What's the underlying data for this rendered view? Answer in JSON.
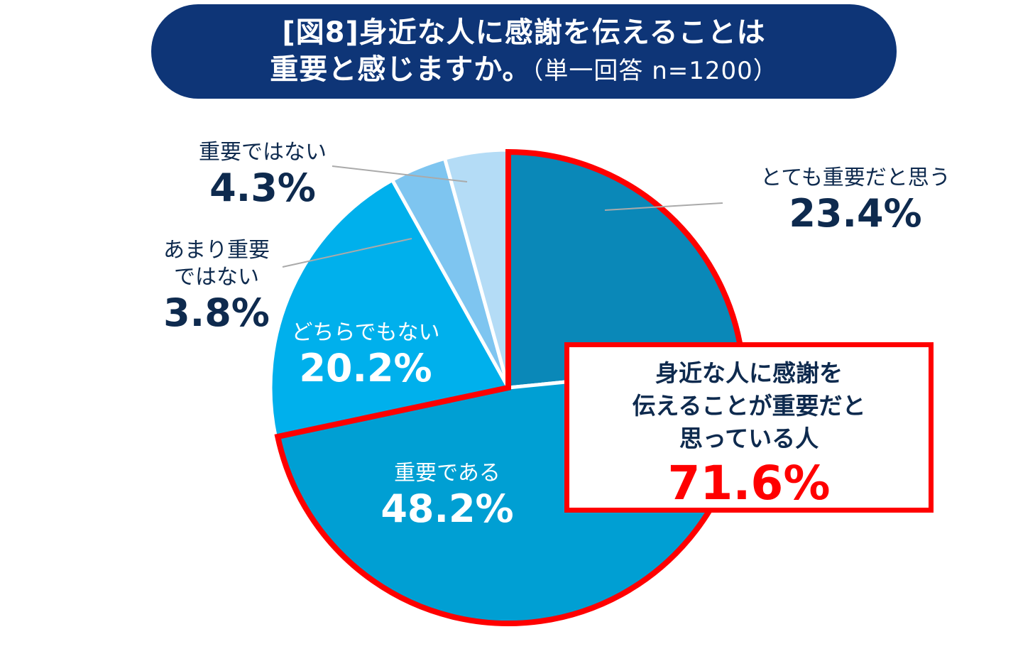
{
  "title": {
    "line1": "[図8]身近な人に感謝を伝えることは",
    "line2_main": "重要と感じますか。",
    "line2_sub": "（単一回答 n=1200）"
  },
  "chart_data": {
    "type": "pie",
    "start_angle_deg": 0,
    "direction": "clockwise",
    "slices": [
      {
        "label": "とても重要だと思う",
        "value": 23.4,
        "value_text": "23.4%",
        "color": "#0a88b8"
      },
      {
        "label": "重要である",
        "value": 48.2,
        "value_text": "48.2%",
        "color": "#009fd3"
      },
      {
        "label": "どちらでもない",
        "value": 20.2,
        "value_text": "20.2%",
        "color": "#00b0ec"
      },
      {
        "label": "あまり重要ではない",
        "value": 3.8,
        "value_text": "3.8%",
        "color": "#7ec5f0"
      },
      {
        "label": "重要ではない",
        "value": 4.3,
        "value_text": "4.3%",
        "color": "#b4dcf6"
      }
    ],
    "highlight": {
      "slices": [
        0,
        1
      ],
      "color": "#ff0000"
    }
  },
  "labels": {
    "very_important": {
      "name": "とても重要だと思う",
      "pct": "23.4%"
    },
    "important": {
      "name": "重要である",
      "pct": "48.2%"
    },
    "neither": {
      "name": "どちらでもない",
      "pct": "20.2%"
    },
    "not_very": {
      "name1": "あまり重要",
      "name2": "ではない",
      "pct": "3.8%"
    },
    "not_important": {
      "name": "重要ではない",
      "pct": "4.3%"
    }
  },
  "callout": {
    "line1": "身近な人に感謝を",
    "line2": "伝えることが重要だと",
    "line3": "思っている人",
    "pct": "71.6%"
  }
}
